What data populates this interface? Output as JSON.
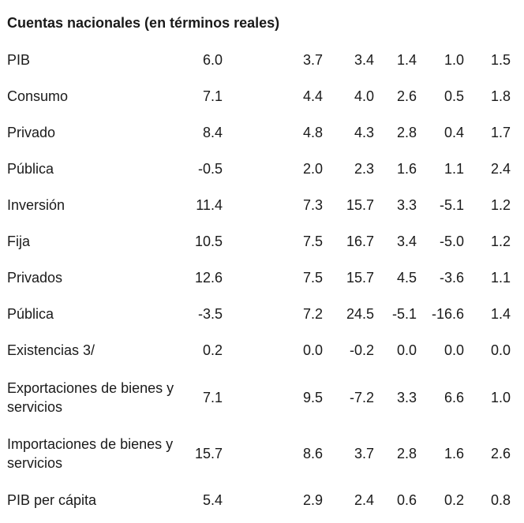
{
  "title": "Cuentas nacionales (en términos reales)",
  "rows": [
    {
      "label": "PIB",
      "values": [
        "6.0",
        "3.7",
        "3.4",
        "1.4",
        "1.0",
        "1.5"
      ]
    },
    {
      "label": "Consumo",
      "values": [
        "7.1",
        "4.4",
        "4.0",
        "2.6",
        "0.5",
        "1.8"
      ]
    },
    {
      "label": "Privado",
      "values": [
        "8.4",
        "4.8",
        "4.3",
        "2.8",
        "0.4",
        "1.7"
      ]
    },
    {
      "label": "Pública",
      "values": [
        "-0.5",
        "2.0",
        "2.3",
        "1.6",
        "1.1",
        "2.4"
      ]
    },
    {
      "label": "Inversión",
      "values": [
        "11.4",
        "7.3",
        "15.7",
        "3.3",
        "-5.1",
        "1.2"
      ]
    },
    {
      "label": "Fija",
      "values": [
        "10.5",
        "7.5",
        "16.7",
        "3.4",
        "-5.0",
        "1.2"
      ]
    },
    {
      "label": "Privados",
      "values": [
        "12.6",
        "7.5",
        "15.7",
        "4.5",
        "-3.6",
        "1.1"
      ]
    },
    {
      "label": "Pública",
      "values": [
        "-3.5",
        "7.2",
        "24.5",
        "-5.1",
        "-16.6",
        "1.4"
      ]
    },
    {
      "label": "Existencias 3/",
      "values": [
        "0.2",
        "0.0",
        "-0.2",
        "0.0",
        "0.0",
        "0.0"
      ]
    },
    {
      "label": "Exportaciones de bienes y servicios",
      "values": [
        "7.1",
        "9.5",
        "-7.2",
        "3.3",
        "6.6",
        "1.0"
      ]
    },
    {
      "label": "Importaciones de bienes y servicios",
      "values": [
        "15.7",
        "8.6",
        "3.7",
        "2.8",
        "1.6",
        "2.6"
      ]
    },
    {
      "label": "PIB per cápita",
      "values": [
        "5.4",
        "2.9",
        "2.4",
        "0.6",
        "0.2",
        "0.8"
      ]
    }
  ]
}
